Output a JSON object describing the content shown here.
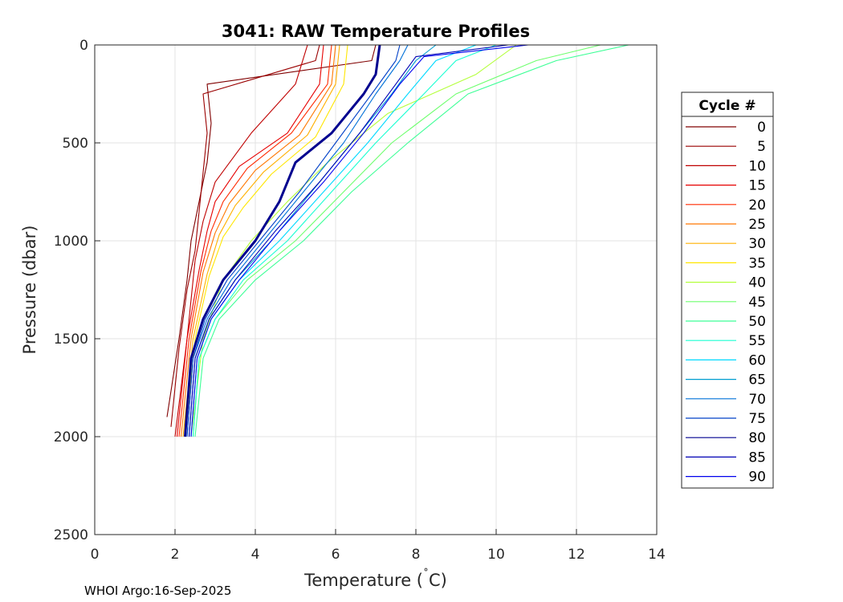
{
  "chart_data": {
    "type": "line",
    "title": "3041: RAW Temperature Profiles",
    "xlabel": "Temperature (",
    "xlabel_deg": "˚",
    "xlabel_unit": "C)",
    "ylabel": "Pressure (dbar)",
    "xlim": [
      0,
      14
    ],
    "ylim": [
      2500,
      0
    ],
    "y_reversed": true,
    "grid": true,
    "xticks": [
      0,
      2,
      4,
      6,
      8,
      10,
      12,
      14
    ],
    "yticks": [
      0,
      500,
      1000,
      1500,
      2000,
      2500
    ],
    "legend": {
      "title": "Cycle #",
      "placement": "right-outside",
      "entries": [
        {
          "label": "0",
          "color": "#800000"
        },
        {
          "label": "5",
          "color": "#9a0000"
        },
        {
          "label": "10",
          "color": "#bf0000"
        },
        {
          "label": "15",
          "color": "#e60000"
        },
        {
          "label": "20",
          "color": "#ff2a00"
        },
        {
          "label": "25",
          "color": "#ff7700"
        },
        {
          "label": "30",
          "color": "#ffb000"
        },
        {
          "label": "35",
          "color": "#ffe600"
        },
        {
          "label": "40",
          "color": "#b4ff3c"
        },
        {
          "label": "45",
          "color": "#6eff6e"
        },
        {
          "label": "50",
          "color": "#3cff96"
        },
        {
          "label": "55",
          "color": "#1affd2"
        },
        {
          "label": "60",
          "color": "#00d9ff"
        },
        {
          "label": "65",
          "color": "#009dd0"
        },
        {
          "label": "70",
          "color": "#0070d8"
        },
        {
          "label": "75",
          "color": "#0040c8"
        },
        {
          "label": "80",
          "color": "#00008f"
        },
        {
          "label": "85",
          "color": "#0000b4"
        },
        {
          "label": "90",
          "color": "#0000ee"
        }
      ]
    },
    "series": [
      {
        "name": "0",
        "color": "#800000",
        "temp": [
          7.0,
          6.9,
          2.8,
          2.9,
          2.8,
          2.6,
          2.4,
          2.3,
          2.1,
          1.8
        ],
        "pressure": [
          0,
          80,
          200,
          400,
          600,
          800,
          1000,
          1200,
          1500,
          1900
        ]
      },
      {
        "name": "5",
        "color": "#9a0000",
        "temp": [
          5.6,
          5.5,
          2.7,
          2.8,
          2.7,
          2.6,
          2.5,
          2.3,
          2.1,
          1.9
        ],
        "pressure": [
          0,
          80,
          250,
          450,
          650,
          850,
          1050,
          1250,
          1550,
          1950
        ]
      },
      {
        "name": "10",
        "color": "#bf0000",
        "temp": [
          5.3,
          5.0,
          3.9,
          3.0,
          2.7,
          2.5,
          2.3,
          2.0
        ],
        "pressure": [
          0,
          200,
          450,
          700,
          900,
          1100,
          1500,
          2000
        ]
      },
      {
        "name": "15",
        "color": "#e60000",
        "temp": [
          5.7,
          5.6,
          4.8,
          3.6,
          3.0,
          2.8,
          2.6,
          2.3,
          2.05
        ],
        "pressure": [
          0,
          200,
          450,
          620,
          800,
          950,
          1150,
          1500,
          2000
        ]
      },
      {
        "name": "20",
        "color": "#ff2a00",
        "temp": [
          5.9,
          5.8,
          4.9,
          3.8,
          3.2,
          2.9,
          2.65,
          2.35,
          2.1
        ],
        "pressure": [
          0,
          200,
          450,
          630,
          800,
          950,
          1150,
          1500,
          2000
        ]
      },
      {
        "name": "25",
        "color": "#ff7700",
        "temp": [
          6.0,
          5.9,
          5.1,
          4.0,
          3.35,
          3.0,
          2.7,
          2.4,
          2.15
        ],
        "pressure": [
          0,
          200,
          460,
          640,
          810,
          960,
          1160,
          1500,
          2000
        ]
      },
      {
        "name": "30",
        "color": "#ffb000",
        "temp": [
          6.1,
          6.0,
          5.3,
          4.2,
          3.5,
          3.1,
          2.8,
          2.45,
          2.2
        ],
        "pressure": [
          0,
          200,
          460,
          650,
          820,
          970,
          1170,
          1500,
          2000
        ]
      },
      {
        "name": "35",
        "color": "#ffe600",
        "temp": [
          6.3,
          6.2,
          5.5,
          4.4,
          3.7,
          3.2,
          2.85,
          2.5,
          2.25
        ],
        "pressure": [
          0,
          200,
          470,
          660,
          830,
          980,
          1180,
          1500,
          2000
        ]
      },
      {
        "name": "40",
        "color": "#b4ff3c",
        "temp": [
          10.5,
          9.5,
          7.3,
          5.8,
          4.8,
          3.9,
          3.2,
          2.7,
          2.4
        ],
        "pressure": [
          0,
          150,
          350,
          600,
          800,
          1000,
          1200,
          1500,
          2000
        ]
      },
      {
        "name": "45",
        "color": "#6eff6e",
        "temp": [
          12.6,
          11.0,
          9.0,
          7.4,
          6.2,
          5.0,
          3.8,
          3.0,
          2.6,
          2.45
        ],
        "pressure": [
          0,
          80,
          250,
          500,
          750,
          1000,
          1200,
          1400,
          1600,
          2000
        ]
      },
      {
        "name": "50",
        "color": "#3cff96",
        "temp": [
          13.3,
          11.5,
          9.3,
          7.8,
          6.4,
          5.2,
          4.0,
          3.1,
          2.7,
          2.5
        ],
        "pressure": [
          0,
          80,
          250,
          500,
          750,
          1000,
          1200,
          1400,
          1600,
          2000
        ]
      },
      {
        "name": "55",
        "color": "#1affd2",
        "temp": [
          10.0,
          9.0,
          8.2,
          7.0,
          5.9,
          4.8,
          3.7,
          3.0,
          2.6,
          2.45
        ],
        "pressure": [
          0,
          80,
          250,
          500,
          750,
          1000,
          1200,
          1400,
          1600,
          2000
        ]
      },
      {
        "name": "60",
        "color": "#00d9ff",
        "temp": [
          9.5,
          8.5,
          7.8,
          6.8,
          5.7,
          4.6,
          3.6,
          2.9,
          2.55,
          2.4
        ],
        "pressure": [
          0,
          80,
          250,
          500,
          750,
          1000,
          1200,
          1400,
          1600,
          2000
        ]
      },
      {
        "name": "65",
        "color": "#009dd0",
        "temp": [
          8.5,
          8.0,
          7.4,
          6.4,
          5.4,
          4.4,
          3.5,
          2.85,
          2.5,
          2.35
        ],
        "pressure": [
          0,
          80,
          250,
          500,
          750,
          1000,
          1200,
          1400,
          1600,
          2000
        ]
      },
      {
        "name": "70",
        "color": "#0070d8",
        "temp": [
          7.8,
          7.6,
          7.0,
          6.2,
          5.2,
          4.2,
          3.4,
          2.8,
          2.45,
          2.3
        ],
        "pressure": [
          0,
          80,
          250,
          500,
          750,
          1000,
          1200,
          1400,
          1600,
          2000
        ]
      },
      {
        "name": "75",
        "color": "#0040c8",
        "temp": [
          7.6,
          7.5,
          6.9,
          6.0,
          5.1,
          4.1,
          3.3,
          2.75,
          2.45,
          2.3
        ],
        "pressure": [
          0,
          80,
          250,
          500,
          750,
          1000,
          1200,
          1400,
          1600,
          2000
        ]
      },
      {
        "name": "80",
        "color": "#00008f",
        "temp": [
          7.1,
          7.0,
          6.7,
          5.9,
          5.0,
          4.6,
          4.0,
          3.2,
          2.7,
          2.4,
          2.25
        ],
        "pressure": [
          0,
          150,
          250,
          450,
          600,
          800,
          1000,
          1200,
          1400,
          1600,
          2000
        ],
        "bold": true
      },
      {
        "name": "85",
        "color": "#0000b4",
        "temp": [
          10.3,
          8.0,
          7.5,
          6.6,
          5.6,
          4.5,
          3.5,
          2.85,
          2.5,
          2.35
        ],
        "pressure": [
          0,
          60,
          200,
          450,
          700,
          950,
          1200,
          1400,
          1600,
          2000
        ]
      },
      {
        "name": "90",
        "color": "#0000ee",
        "temp": [
          10.8,
          8.2,
          7.6,
          6.7,
          5.7,
          4.6,
          3.6,
          2.9,
          2.55,
          2.4
        ],
        "pressure": [
          0,
          60,
          200,
          450,
          700,
          950,
          1200,
          1400,
          1600,
          2000
        ]
      }
    ]
  },
  "footer": "WHOI Argo:16-Sep-2025"
}
